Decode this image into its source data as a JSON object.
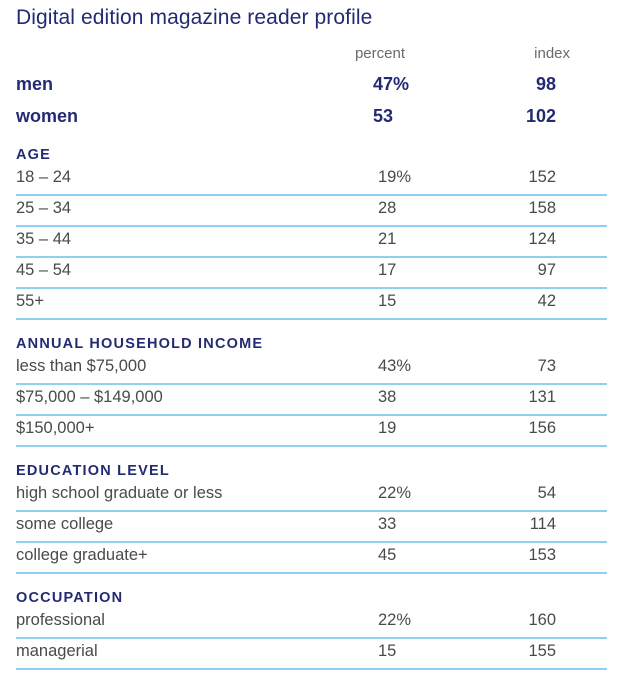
{
  "title": "Digital edition magazine reader profile",
  "headers": {
    "percent": "percent",
    "index": "index"
  },
  "summary": [
    {
      "label": "men",
      "percent": "47%",
      "index": "98"
    },
    {
      "label": "women",
      "percent": "53",
      "index": "102"
    }
  ],
  "sections": [
    {
      "heading": "AGE",
      "rows": [
        {
          "label": "18 – 24",
          "percent": "19%",
          "index": "152"
        },
        {
          "label": "25 – 34",
          "percent": "28",
          "index": "158"
        },
        {
          "label": "35 – 44",
          "percent": "21",
          "index": "124"
        },
        {
          "label": "45 – 54",
          "percent": "17",
          "index": "97"
        },
        {
          "label": "55+",
          "percent": "15",
          "index": "42"
        }
      ]
    },
    {
      "heading": "ANNUAL HOUSEHOLD INCOME",
      "rows": [
        {
          "label": "less than $75,000",
          "percent": "43%",
          "index": "73"
        },
        {
          "label": "$75,000 – $149,000",
          "percent": "38",
          "index": "131"
        },
        {
          "label": "$150,000+",
          "percent": "19",
          "index": "156"
        }
      ]
    },
    {
      "heading": "EDUCATION LEVEL",
      "rows": [
        {
          "label": "high school graduate or less",
          "percent": "22%",
          "index": "54"
        },
        {
          "label": "some college",
          "percent": "33",
          "index": "114"
        },
        {
          "label": "college graduate+",
          "percent": "45",
          "index": "153"
        }
      ]
    },
    {
      "heading": "OCCUPATION",
      "rows": [
        {
          "label": "professional",
          "percent": "22%",
          "index": "160"
        },
        {
          "label": "managerial",
          "percent": "15",
          "index": "155"
        }
      ]
    }
  ]
}
